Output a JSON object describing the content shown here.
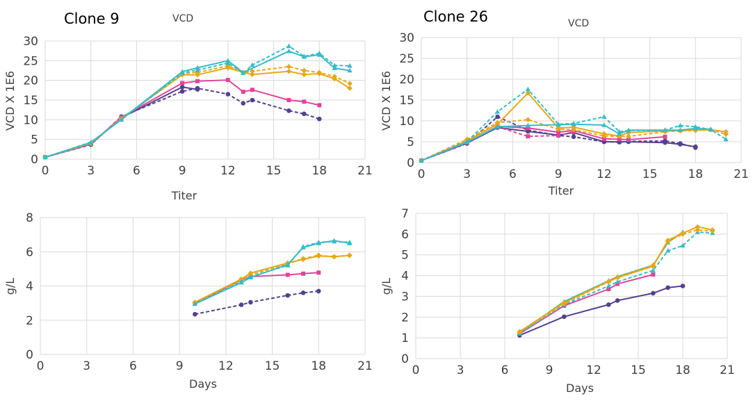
{
  "colors": {
    "dark_purple": "#54408f",
    "magenta": "#e0449a",
    "gold": "#e6a817",
    "teal": "#35bcc7",
    "green_teal": "#44b89a"
  },
  "chart_data": [
    {
      "id": "c9_vcd",
      "type": "line",
      "title": "Clone 9",
      "subtitle": "VCD",
      "xlabel": "Titer",
      "ylabel": "VCD X 1E6",
      "xlim": [
        0,
        21
      ],
      "ylim": [
        0,
        30
      ],
      "xticks": [
        0,
        3,
        6,
        9,
        12,
        15,
        18,
        21
      ],
      "yticks": [
        0,
        5,
        10,
        15,
        20,
        25,
        30
      ],
      "series": [
        {
          "color": "dark_purple",
          "dash": true,
          "marker": "circle",
          "x": [
            0,
            3,
            5,
            9,
            10,
            12,
            13,
            13.6,
            16,
            17,
            18
          ],
          "y": [
            0.5,
            3.7,
            10.8,
            17.2,
            18.0,
            16.5,
            14.2,
            15.0,
            12.3,
            11.5,
            10.2
          ]
        },
        {
          "color": "dark_purple",
          "dash": false,
          "marker": "circle",
          "x": [
            0,
            3,
            5,
            9,
            10
          ],
          "y": [
            0.5,
            3.8,
            10.5,
            18.3,
            17.7
          ]
        },
        {
          "color": "magenta",
          "dash": false,
          "marker": "square",
          "x": [
            0,
            3,
            5,
            9,
            10,
            12,
            13,
            13.6,
            16,
            17,
            18
          ],
          "y": [
            0.5,
            3.9,
            10.6,
            19.3,
            19.8,
            20.1,
            17.1,
            17.6,
            15.0,
            14.6,
            13.7
          ]
        },
        {
          "color": "gold",
          "dash": false,
          "marker": "diamond",
          "x": [
            0,
            3,
            5,
            9,
            10,
            12,
            13,
            13.6,
            16,
            17,
            18,
            19,
            20
          ],
          "y": [
            0.5,
            4.0,
            10.3,
            21.4,
            21.4,
            23.2,
            22.0,
            21.5,
            22.3,
            21.5,
            21.7,
            20.4,
            18.0
          ]
        },
        {
          "color": "gold",
          "dash": true,
          "marker": "diamond",
          "x": [
            0,
            3,
            5,
            9,
            10,
            12,
            13,
            13.6,
            16,
            17,
            18,
            19,
            20
          ],
          "y": [
            0.5,
            4.1,
            10.2,
            21.7,
            22.0,
            23.7,
            22.0,
            22.3,
            23.5,
            22.5,
            22.0,
            21.0,
            19.2
          ]
        },
        {
          "color": "teal",
          "dash": false,
          "marker": "triangle",
          "x": [
            0,
            3,
            5,
            9,
            10,
            12,
            13,
            16,
            17,
            18,
            19,
            20
          ],
          "y": [
            0.5,
            4.2,
            10.1,
            22.2,
            23.2,
            25.0,
            22.0,
            27.4,
            26.0,
            26.5,
            23.1,
            22.5
          ]
        },
        {
          "color": "teal",
          "dash": true,
          "marker": "triangle",
          "x": [
            0,
            3,
            5,
            9,
            10,
            12,
            13,
            13.6,
            16,
            17,
            18,
            19,
            20
          ],
          "y": [
            0.5,
            4.3,
            10.0,
            21.9,
            22.6,
            24.4,
            21.9,
            23.9,
            28.7,
            26.1,
            26.9,
            23.8,
            23.7
          ]
        }
      ]
    },
    {
      "id": "c26_vcd",
      "type": "line",
      "title": "Clone 26",
      "subtitle": "VCD",
      "xlabel": "Titer",
      "ylabel": "VCD X 1E6",
      "xlim": [
        0,
        21
      ],
      "ylim": [
        0,
        30
      ],
      "xticks": [
        0,
        3,
        6,
        9,
        12,
        15,
        18,
        21
      ],
      "yticks": [
        0,
        5,
        10,
        15,
        20,
        25,
        30
      ],
      "series": [
        {
          "color": "dark_purple",
          "dash": true,
          "marker": "circle",
          "x": [
            0,
            3,
            5,
            7,
            9,
            10,
            12,
            13,
            13.6,
            16,
            17,
            18
          ],
          "y": [
            0.5,
            4.6,
            11.0,
            7.8,
            6.5,
            6.2,
            5.0,
            4.9,
            5.1,
            5.2,
            4.6,
            3.6
          ]
        },
        {
          "color": "dark_purple",
          "dash": false,
          "marker": "circle",
          "x": [
            0,
            3,
            5,
            7,
            9,
            10,
            12,
            13,
            13.6,
            16,
            17,
            18
          ],
          "y": [
            0.5,
            4.7,
            8.4,
            7.5,
            6.6,
            7.2,
            5.0,
            5.0,
            5.0,
            4.8,
            4.4,
            3.8
          ]
        },
        {
          "color": "magenta",
          "dash": false,
          "marker": "square",
          "x": [
            0,
            3,
            5,
            7,
            9,
            10,
            12,
            13,
            13.6,
            16
          ],
          "y": [
            0.5,
            4.8,
            8.7,
            8.3,
            7.3,
            7.7,
            5.7,
            5.6,
            5.5,
            6.2
          ]
        },
        {
          "color": "magenta",
          "dash": true,
          "marker": "square",
          "x": [
            5,
            7,
            9,
            10
          ],
          "y": [
            8.6,
            6.3,
            6.5,
            7.4
          ]
        },
        {
          "color": "gold",
          "dash": false,
          "marker": "diamond",
          "x": [
            0,
            3,
            5,
            7,
            9,
            10,
            12,
            13,
            13.6,
            16,
            17,
            18,
            19,
            20
          ],
          "y": [
            0.5,
            5.2,
            9.2,
            16.7,
            8.3,
            8.5,
            6.9,
            6.4,
            7.2,
            7.6,
            7.7,
            7.8,
            7.9,
            7.4
          ]
        },
        {
          "color": "gold",
          "dash": true,
          "marker": "diamond",
          "x": [
            0,
            3,
            5,
            7,
            9,
            10,
            12,
            13,
            13.6,
            16,
            17,
            18,
            19,
            20
          ],
          "y": [
            0.5,
            5.6,
            9.6,
            10.3,
            8.0,
            7.9,
            6.4,
            6.3,
            6.3,
            7.4,
            7.6,
            7.7,
            7.9,
            6.8
          ]
        },
        {
          "color": "teal",
          "dash": true,
          "marker": "triangle",
          "x": [
            0,
            3,
            5,
            7,
            9,
            10,
            12,
            13,
            13.6,
            16,
            17,
            18,
            19,
            20
          ],
          "y": [
            0.5,
            5.0,
            12.2,
            17.6,
            9.2,
            9.4,
            11.0,
            7.4,
            7.7,
            7.8,
            8.9,
            8.6,
            7.9,
            5.6
          ]
        },
        {
          "color": "teal",
          "dash": false,
          "marker": "triangle",
          "x": [
            0,
            3,
            5,
            7,
            9,
            10,
            12,
            13,
            13.6,
            16,
            17,
            18,
            19
          ],
          "y": [
            0.5,
            4.9,
            8.6,
            8.9,
            9.1,
            9.2,
            9.0,
            6.9,
            7.8,
            7.8,
            7.8,
            8.2,
            8.0
          ]
        }
      ]
    },
    {
      "id": "c9_titer",
      "type": "line",
      "title": "",
      "xlabel": "Days",
      "ylabel": "g/L",
      "xlim": [
        0,
        21
      ],
      "ylim": [
        0,
        8
      ],
      "xticks": [
        0,
        3,
        6,
        9,
        12,
        15,
        18,
        21
      ],
      "yticks": [
        0,
        2,
        4,
        6,
        8
      ],
      "series": [
        {
          "color": "dark_purple",
          "dash": true,
          "marker": "circle",
          "x": [
            10,
            13,
            13.6,
            16,
            17,
            18
          ],
          "y": [
            2.35,
            2.9,
            3.05,
            3.45,
            3.6,
            3.7
          ]
        },
        {
          "color": "magenta",
          "dash": false,
          "marker": "square",
          "x": [
            10,
            13,
            13.6,
            16,
            17,
            18
          ],
          "y": [
            2.98,
            4.35,
            4.55,
            4.65,
            4.72,
            4.78
          ]
        },
        {
          "color": "gold",
          "dash": false,
          "marker": "diamond",
          "x": [
            10,
            13,
            13.6,
            16,
            17,
            18,
            19,
            20
          ],
          "y": [
            3.05,
            4.4,
            4.75,
            5.35,
            5.55,
            5.75,
            5.72,
            5.78
          ]
        },
        {
          "color": "gold",
          "dash": true,
          "marker": "diamond",
          "x": [
            10,
            13,
            13.6,
            16,
            17,
            18,
            19,
            20
          ],
          "y": [
            3.0,
            4.3,
            4.65,
            5.3,
            5.6,
            5.8,
            5.7,
            5.8
          ]
        },
        {
          "color": "teal",
          "dash": false,
          "marker": "triangle",
          "x": [
            10,
            13,
            13.6,
            16,
            17,
            18,
            19,
            20
          ],
          "y": [
            2.95,
            4.2,
            4.5,
            5.25,
            6.25,
            6.5,
            6.65,
            6.5
          ]
        },
        {
          "color": "teal",
          "dash": true,
          "marker": "triangle",
          "x": [
            10,
            13,
            13.6,
            16,
            17,
            18,
            19,
            20
          ],
          "y": [
            2.95,
            4.25,
            4.55,
            5.2,
            6.3,
            6.55,
            6.6,
            6.55
          ]
        }
      ]
    },
    {
      "id": "c26_titer",
      "type": "line",
      "title": "",
      "xlabel": "Days",
      "ylabel": "g/L",
      "xlim": [
        0,
        21
      ],
      "ylim": [
        0,
        7
      ],
      "xticks": [
        0,
        3,
        6,
        9,
        12,
        15,
        18,
        21
      ],
      "yticks": [
        0,
        1,
        2,
        3,
        4,
        5,
        6,
        7
      ],
      "series": [
        {
          "color": "dark_purple",
          "dash": false,
          "marker": "circle",
          "x": [
            7,
            10,
            13,
            13.6,
            16,
            17,
            18
          ],
          "y": [
            1.12,
            2.02,
            2.6,
            2.8,
            3.15,
            3.42,
            3.5
          ]
        },
        {
          "color": "magenta",
          "dash": false,
          "marker": "square",
          "x": [
            7,
            10,
            13,
            13.6,
            16
          ],
          "y": [
            1.2,
            2.55,
            3.35,
            3.6,
            4.05
          ]
        },
        {
          "color": "teal",
          "dash": true,
          "marker": "triangle",
          "x": [
            7,
            10,
            13,
            13.6,
            16,
            17,
            18,
            19,
            20
          ],
          "y": [
            1.22,
            2.6,
            3.5,
            3.7,
            4.25,
            5.2,
            5.45,
            6.1,
            6.05
          ]
        },
        {
          "color": "green_teal",
          "dash": false,
          "marker": "triangle",
          "x": [
            7,
            10,
            13,
            13.6,
            16,
            17,
            18
          ],
          "y": [
            1.25,
            2.75,
            3.75,
            3.95,
            4.5,
            5.6,
            6.1
          ]
        },
        {
          "color": "gold",
          "dash": false,
          "marker": "diamond",
          "x": [
            7,
            10,
            13,
            13.6,
            16,
            17,
            18,
            19,
            20
          ],
          "y": [
            1.3,
            2.7,
            3.72,
            3.9,
            4.45,
            5.7,
            6.05,
            6.35,
            6.2
          ]
        },
        {
          "color": "gold",
          "dash": true,
          "marker": "diamond",
          "x": [
            7,
            10,
            13,
            13.6,
            16,
            17,
            18,
            19,
            20
          ],
          "y": [
            1.28,
            2.65,
            3.7,
            3.92,
            4.5,
            5.65,
            6.0,
            6.2,
            6.15
          ]
        }
      ]
    }
  ]
}
